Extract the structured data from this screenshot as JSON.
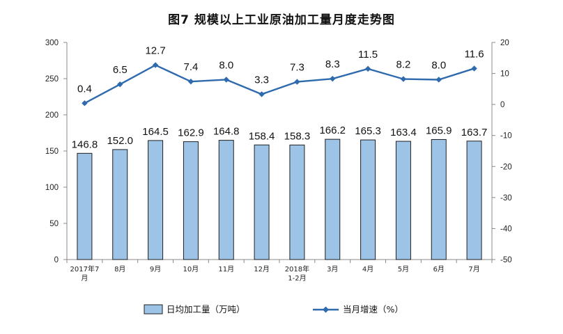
{
  "chart_data": {
    "title": "图7  规模以上工业原油加工量月度走势图",
    "categories": [
      "2017年7月",
      "8月",
      "9月",
      "10月",
      "11月",
      "12月",
      "2018年1-2月",
      "3月",
      "4月",
      "5月",
      "6月",
      "7月"
    ],
    "series": [
      {
        "name": "日均加工量（万吨）",
        "type": "bar",
        "axis": "left",
        "values": [
          146.8,
          152.0,
          164.5,
          162.9,
          164.8,
          158.4,
          158.3,
          166.2,
          165.3,
          163.4,
          165.9,
          163.7
        ],
        "labels": [
          "146.8",
          "152.0",
          "164.5",
          "162.9",
          "164.8",
          "158.4",
          "158.3",
          "166.2",
          "165.3",
          "163.4",
          "165.9",
          "163.7"
        ]
      },
      {
        "name": "当月增速（%）",
        "type": "line",
        "axis": "right",
        "values": [
          0.4,
          6.5,
          12.7,
          7.4,
          8.0,
          3.3,
          7.3,
          8.3,
          11.5,
          8.2,
          8.0,
          11.6
        ],
        "labels": [
          "0.4",
          "6.5",
          "12.7",
          "7.4",
          "8.0",
          "3.3",
          "7.3",
          "8.3",
          "11.5",
          "8.2",
          "8.0",
          "11.6"
        ]
      }
    ],
    "y_left": {
      "range": [
        0,
        300
      ],
      "ticks": [
        0,
        50,
        100,
        150,
        200,
        250,
        300
      ]
    },
    "y_right": {
      "range": [
        -50,
        20
      ],
      "ticks": [
        -50,
        -40,
        -30,
        -20,
        -10,
        0,
        10,
        20
      ]
    },
    "legend_placement": "bottom",
    "grid": false,
    "colors": {
      "bar_fill": "#9dc3e6",
      "bar_stroke": "#1f1f1f",
      "line": "#2e6aad",
      "axis": "#888888"
    }
  }
}
